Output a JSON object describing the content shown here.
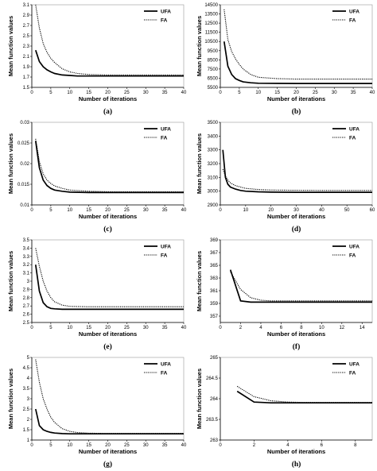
{
  "chart_data": [
    {
      "label": "(a)",
      "type": "line",
      "xlabel": "Number of iterations",
      "ylabel": "Mean function values",
      "xlim": [
        0,
        40
      ],
      "ylim": [
        1.5,
        3.1
      ],
      "xticks": [
        0,
        5,
        10,
        15,
        20,
        25,
        30,
        35,
        40
      ],
      "yticks": [
        1.5,
        1.7,
        1.9,
        2.1,
        2.3,
        2.5,
        2.7,
        2.9,
        3.1
      ],
      "legend": "top-right",
      "grid": false,
      "series": [
        {
          "name": "UFA",
          "style": "solid",
          "x": [
            1,
            2,
            3,
            4,
            5,
            6,
            8,
            10,
            12,
            15,
            20,
            25,
            30,
            35,
            40
          ],
          "y": [
            2.22,
            2.0,
            1.9,
            1.84,
            1.8,
            1.77,
            1.74,
            1.73,
            1.72,
            1.72,
            1.72,
            1.72,
            1.72,
            1.72,
            1.72
          ]
        },
        {
          "name": "FA",
          "style": "dotted",
          "x": [
            1,
            2,
            3,
            4,
            5,
            6,
            8,
            10,
            12,
            15,
            20,
            25,
            30,
            35,
            40
          ],
          "y": [
            3.1,
            2.65,
            2.35,
            2.18,
            2.06,
            1.98,
            1.86,
            1.8,
            1.77,
            1.75,
            1.74,
            1.74,
            1.74,
            1.74,
            1.74
          ]
        }
      ]
    },
    {
      "label": "(b)",
      "type": "line",
      "xlabel": "Number of iterations",
      "ylabel": "Mean function values",
      "xlim": [
        0,
        40
      ],
      "ylim": [
        5500,
        14500
      ],
      "xticks": [
        0,
        5,
        10,
        15,
        20,
        25,
        30,
        35,
        40
      ],
      "yticks": [
        5500,
        6500,
        7500,
        8500,
        9500,
        10500,
        11500,
        12500,
        13500,
        14500
      ],
      "legend": "top-right",
      "grid": false,
      "series": [
        {
          "name": "UFA",
          "style": "solid",
          "x": [
            1,
            2,
            3,
            4,
            5,
            6,
            8,
            10,
            15,
            20,
            25,
            30,
            35,
            40
          ],
          "y": [
            10500,
            7800,
            6900,
            6450,
            6250,
            6100,
            6000,
            5950,
            5930,
            5920,
            5920,
            5920,
            5920,
            5920
          ]
        },
        {
          "name": "FA",
          "style": "dotted",
          "x": [
            1,
            2,
            3,
            4,
            5,
            6,
            8,
            10,
            15,
            20,
            25,
            30,
            35,
            40
          ],
          "y": [
            14000,
            10700,
            9400,
            8600,
            8000,
            7500,
            6900,
            6600,
            6450,
            6400,
            6400,
            6400,
            6400,
            6400
          ]
        }
      ]
    },
    {
      "label": "(c)",
      "type": "line",
      "xlabel": "Number of iterations",
      "ylabel": "Mean function values",
      "xlim": [
        0,
        40
      ],
      "ylim": [
        0.01,
        0.03
      ],
      "xticks": [
        0,
        5,
        10,
        15,
        20,
        25,
        30,
        35,
        40
      ],
      "yticks": [
        0.01,
        0.015,
        0.02,
        0.025,
        0.03
      ],
      "legend": "top-right",
      "grid": false,
      "series": [
        {
          "name": "UFA",
          "style": "solid",
          "x": [
            1,
            2,
            3,
            4,
            5,
            6,
            8,
            10,
            15,
            20,
            25,
            30,
            35,
            40
          ],
          "y": [
            0.0255,
            0.019,
            0.016,
            0.0147,
            0.014,
            0.0136,
            0.0133,
            0.0131,
            0.013,
            0.013,
            0.013,
            0.013,
            0.013,
            0.013
          ]
        },
        {
          "name": "FA",
          "style": "dotted",
          "x": [
            1,
            2,
            3,
            4,
            5,
            6,
            8,
            10,
            15,
            20,
            25,
            30,
            35,
            40
          ],
          "y": [
            0.026,
            0.0205,
            0.0175,
            0.016,
            0.0152,
            0.0146,
            0.014,
            0.0136,
            0.0133,
            0.0132,
            0.0132,
            0.0132,
            0.0132,
            0.0132
          ]
        }
      ]
    },
    {
      "label": "(d)",
      "type": "line",
      "xlabel": "Number of iterations",
      "ylabel": "Mean function values",
      "xlim": [
        0,
        60
      ],
      "ylim": [
        2900,
        3500
      ],
      "xticks": [
        0,
        10,
        20,
        30,
        40,
        50,
        60
      ],
      "yticks": [
        2900,
        3000,
        3100,
        3200,
        3300,
        3400,
        3500
      ],
      "legend": "top-right",
      "grid": false,
      "series": [
        {
          "name": "UFA",
          "style": "solid",
          "x": [
            1,
            2,
            3,
            4,
            6,
            8,
            10,
            15,
            20,
            30,
            40,
            50,
            60
          ],
          "y": [
            3300,
            3100,
            3050,
            3030,
            3015,
            3005,
            3000,
            2995,
            2993,
            2992,
            2992,
            2992,
            2992
          ]
        },
        {
          "name": "FA",
          "style": "dotted",
          "x": [
            1,
            2,
            3,
            4,
            6,
            8,
            10,
            15,
            20,
            30,
            40,
            50,
            60
          ],
          "y": [
            3160,
            3110,
            3080,
            3060,
            3040,
            3030,
            3020,
            3012,
            3008,
            3006,
            3005,
            3005,
            3005
          ]
        }
      ]
    },
    {
      "label": "(e)",
      "type": "line",
      "xlabel": "Number of iterations",
      "ylabel": "Mean function values",
      "xlim": [
        0,
        40
      ],
      "ylim": [
        2.5,
        3.5
      ],
      "xticks": [
        0,
        5,
        10,
        15,
        20,
        25,
        30,
        35,
        40
      ],
      "yticks": [
        2.5,
        2.6,
        2.7,
        2.8,
        2.9,
        3,
        3.1,
        3.2,
        3.3,
        3.4,
        3.5
      ],
      "legend": "top-right",
      "grid": false,
      "series": [
        {
          "name": "UFA",
          "style": "solid",
          "x": [
            1,
            2,
            3,
            4,
            5,
            6,
            8,
            10,
            15,
            20,
            25,
            30,
            35,
            40
          ],
          "y": [
            3.2,
            2.88,
            2.74,
            2.69,
            2.67,
            2.665,
            2.66,
            2.66,
            2.66,
            2.66,
            2.66,
            2.66,
            2.66,
            2.66
          ]
        },
        {
          "name": "FA",
          "style": "dotted",
          "x": [
            1,
            2,
            3,
            4,
            5,
            6,
            8,
            10,
            15,
            20,
            25,
            30,
            35,
            40
          ],
          "y": [
            3.4,
            3.18,
            3.0,
            2.88,
            2.8,
            2.75,
            2.71,
            2.695,
            2.69,
            2.69,
            2.69,
            2.69,
            2.69,
            2.69
          ]
        }
      ]
    },
    {
      "label": "(f)",
      "type": "line",
      "xlabel": "Number of iterations",
      "ylabel": "Mean function values",
      "xlim": [
        0,
        15
      ],
      "ylim": [
        356,
        369
      ],
      "xticks": [
        0,
        2,
        4,
        6,
        8,
        10,
        12,
        14
      ],
      "yticks": [
        357,
        359,
        361,
        363,
        365,
        367,
        369
      ],
      "legend": "top-right",
      "grid": false,
      "series": [
        {
          "name": "UFA",
          "style": "solid",
          "x": [
            1,
            2,
            3,
            4,
            5,
            6,
            8,
            10,
            12,
            14,
            15
          ],
          "y": [
            364.3,
            359.4,
            359.2,
            359.2,
            359.2,
            359.2,
            359.2,
            359.2,
            359.2,
            359.2,
            359.2
          ]
        },
        {
          "name": "FA",
          "style": "dotted",
          "x": [
            1,
            2,
            3,
            4,
            5,
            6,
            8,
            10,
            12,
            14,
            15
          ],
          "y": [
            364.0,
            361.2,
            359.9,
            359.5,
            359.4,
            359.4,
            359.4,
            359.4,
            359.4,
            359.4,
            359.4
          ]
        }
      ]
    },
    {
      "label": "(g)",
      "type": "line",
      "xlabel": "Number of iterations",
      "ylabel": "Mean function values",
      "xlim": [
        0,
        40
      ],
      "ylim": [
        1,
        5
      ],
      "xticks": [
        0,
        5,
        10,
        15,
        20,
        25,
        30,
        35,
        40
      ],
      "yticks": [
        1,
        1.5,
        2,
        2.5,
        3,
        3.5,
        4,
        4.5,
        5
      ],
      "legend": "top-right",
      "grid": false,
      "series": [
        {
          "name": "UFA",
          "style": "solid",
          "x": [
            1,
            2,
            3,
            4,
            5,
            6,
            8,
            10,
            15,
            20,
            25,
            30,
            35,
            40
          ],
          "y": [
            2.5,
            1.7,
            1.5,
            1.42,
            1.37,
            1.34,
            1.31,
            1.3,
            1.3,
            1.3,
            1.3,
            1.3,
            1.3,
            1.3
          ]
        },
        {
          "name": "FA",
          "style": "dotted",
          "x": [
            1,
            2,
            3,
            4,
            5,
            6,
            8,
            10,
            12,
            15,
            20,
            25,
            30,
            35,
            40
          ],
          "y": [
            4.9,
            3.8,
            3.0,
            2.5,
            2.1,
            1.85,
            1.55,
            1.42,
            1.36,
            1.33,
            1.32,
            1.32,
            1.32,
            1.32,
            1.32
          ]
        }
      ]
    },
    {
      "label": "(h)",
      "type": "line",
      "xlabel": "Number of iterations",
      "ylabel": "Mean function values",
      "xlim": [
        0,
        9
      ],
      "ylim": [
        263,
        265
      ],
      "xticks": [
        0,
        2,
        4,
        6,
        8
      ],
      "yticks": [
        263,
        263.5,
        264,
        264.5,
        265
      ],
      "legend": "top-right",
      "grid": false,
      "series": [
        {
          "name": "UFA",
          "style": "solid",
          "x": [
            1,
            2,
            3,
            4,
            5,
            6,
            7,
            8,
            9
          ],
          "y": [
            264.18,
            263.92,
            263.9,
            263.9,
            263.9,
            263.9,
            263.9,
            263.9,
            263.9
          ]
        },
        {
          "name": "FA",
          "style": "dotted",
          "x": [
            1,
            2,
            3,
            4,
            5,
            6,
            7,
            8,
            9
          ],
          "y": [
            264.3,
            264.05,
            263.95,
            263.92,
            263.91,
            263.91,
            263.91,
            263.91,
            263.91
          ]
        }
      ]
    }
  ]
}
